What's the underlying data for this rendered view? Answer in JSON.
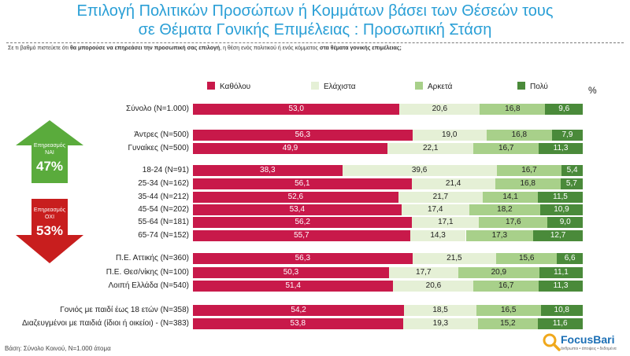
{
  "title_line1": "Επιλογή Πολιτικών Προσώπων ή Κομμάτων  βάσει των Θέσεών  τους",
  "title_line2": "σε Θέματα Γονικής Επιμέλειας : Προσωπική Στάση",
  "question": {
    "p1": "Σε τι βαθμό πιστεύετε ότι ",
    "b1": "θα μπορούσε να επηρεάσει την προσωπική σας επιλογή",
    "p2": ", η θέση ενός πολιτικού ή ενός κόμματος ",
    "b2": "στα θέματα γονικής επιμέλειας;"
  },
  "percent_symbol": "%",
  "colors": [
    "#c8194a",
    "#e5f0d6",
    "#a8d08a",
    "#4a8a3a"
  ],
  "value_text_colors": [
    "#ffffff",
    "#222222",
    "#222222",
    "#ffffff"
  ],
  "chart_data": {
    "type": "bar",
    "stacked": true,
    "unit": "%",
    "series": [
      {
        "name": "Καθόλου"
      },
      {
        "name": "Ελάχιστα"
      },
      {
        "name": "Αρκετά"
      },
      {
        "name": "Πολύ"
      }
    ],
    "rows": [
      {
        "label": "Σύνολο (N=1.000)",
        "values": [
          53.0,
          20.6,
          16.8,
          9.6
        ],
        "labels": [
          "53,0",
          "20,6",
          "16,8",
          "9,6"
        ]
      },
      {
        "label": "Άντρες (N=500)",
        "values": [
          56.3,
          19.0,
          16.8,
          7.9
        ],
        "labels": [
          "56,3",
          "19,0",
          "16,8",
          "7,9"
        ]
      },
      {
        "label": "Γυναίκες (N=500)",
        "values": [
          49.9,
          22.1,
          16.7,
          11.3
        ],
        "labels": [
          "49,9",
          "22,1",
          "16,7",
          "11,3"
        ]
      },
      {
        "label": "18-24 (N=91)",
        "values": [
          38.3,
          39.6,
          16.7,
          5.4
        ],
        "labels": [
          "38,3",
          "39,6",
          "16,7",
          "5,4"
        ]
      },
      {
        "label": "25-34 (N=162)",
        "values": [
          56.1,
          21.4,
          16.8,
          5.7
        ],
        "labels": [
          "56,1",
          "21,4",
          "16,8",
          "5,7"
        ]
      },
      {
        "label": "35-44 (N=212)",
        "values": [
          52.6,
          21.7,
          14.1,
          11.5
        ],
        "labels": [
          "52,6",
          "21,7",
          "14,1",
          "11,5"
        ]
      },
      {
        "label": "45-54 (N=202)",
        "values": [
          53.4,
          17.4,
          18.2,
          10.9
        ],
        "labels": [
          "53,4",
          "17,4",
          "18,2",
          "10,9"
        ]
      },
      {
        "label": "55-64 (N=181)",
        "values": [
          56.2,
          17.1,
          17.6,
          9.0
        ],
        "labels": [
          "56,2",
          "17,1",
          "17,6",
          "9,0"
        ]
      },
      {
        "label": "65-74 (N=152)",
        "values": [
          55.7,
          14.3,
          17.3,
          12.7
        ],
        "labels": [
          "55,7",
          "14,3",
          "17,3",
          "12,7"
        ]
      },
      {
        "label": "Π.Ε. Αττικής (N=360)",
        "values": [
          56.3,
          21.5,
          15.6,
          6.6
        ],
        "labels": [
          "56,3",
          "21,5",
          "15,6",
          "6,6"
        ]
      },
      {
        "label": "Π.Ε. Θεσ/νίκης (N=100)",
        "values": [
          50.3,
          17.7,
          20.9,
          11.1
        ],
        "labels": [
          "50,3",
          "17,7",
          "20,9",
          "11,1"
        ]
      },
      {
        "label": "Λοιπή Ελλάδα (N=540)",
        "values": [
          51.4,
          20.6,
          16.7,
          11.3
        ],
        "labels": [
          "51,4",
          "20,6",
          "16,7",
          "11,3"
        ]
      },
      {
        "label": "Γονιός με παιδί έως 18 ετών (N=358)",
        "values": [
          54.2,
          18.5,
          16.5,
          10.8
        ],
        "labels": [
          "54,2",
          "18,5",
          "16,5",
          "10,8"
        ]
      },
      {
        "label": "Διαζευγμένοι με παιδιά (ίδιοι ή οικείοι) - (N=383)",
        "values": [
          53.8,
          19.3,
          15.2,
          11.6
        ],
        "labels": [
          "53,8",
          "19,3",
          "15,2",
          "11,6"
        ]
      }
    ],
    "xlim": [
      0,
      100
    ]
  },
  "up_arrow": {
    "label1": "Επηρεασμός",
    "label2": "ΝΑΙ",
    "value": "47%",
    "color": "#5aab3c"
  },
  "down_arrow": {
    "label1": "Επηρεασμός",
    "label2": "ΟΧΙ",
    "value": "53%",
    "color": "#c81e1e"
  },
  "footer": "Βάση: Σύνολο Κοινού, N=1.000 άτομα",
  "logo": {
    "name": "FocusBari",
    "tagline": "άνθρωποι • άποψεις • δεδομένα"
  }
}
